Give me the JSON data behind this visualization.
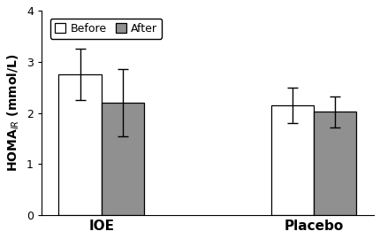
{
  "groups": [
    "IOE",
    "Placebo"
  ],
  "before_values": [
    2.75,
    2.15
  ],
  "after_values": [
    2.2,
    2.02
  ],
  "before_errors": [
    0.5,
    0.35
  ],
  "after_errors": [
    0.65,
    0.3
  ],
  "before_color": "#ffffff",
  "after_color": "#909090",
  "bar_edge_color": "#000000",
  "ylabel": "HOMA$_{IR}$ (mmol/L)",
  "ylim": [
    0,
    4
  ],
  "yticks": [
    0,
    1,
    2,
    3,
    4
  ],
  "legend_labels": [
    "Before",
    "After"
  ],
  "bar_width": 0.32,
  "group_centers": [
    1.0,
    2.6
  ],
  "figsize": [
    4.3,
    2.7
  ],
  "dpi": 100
}
